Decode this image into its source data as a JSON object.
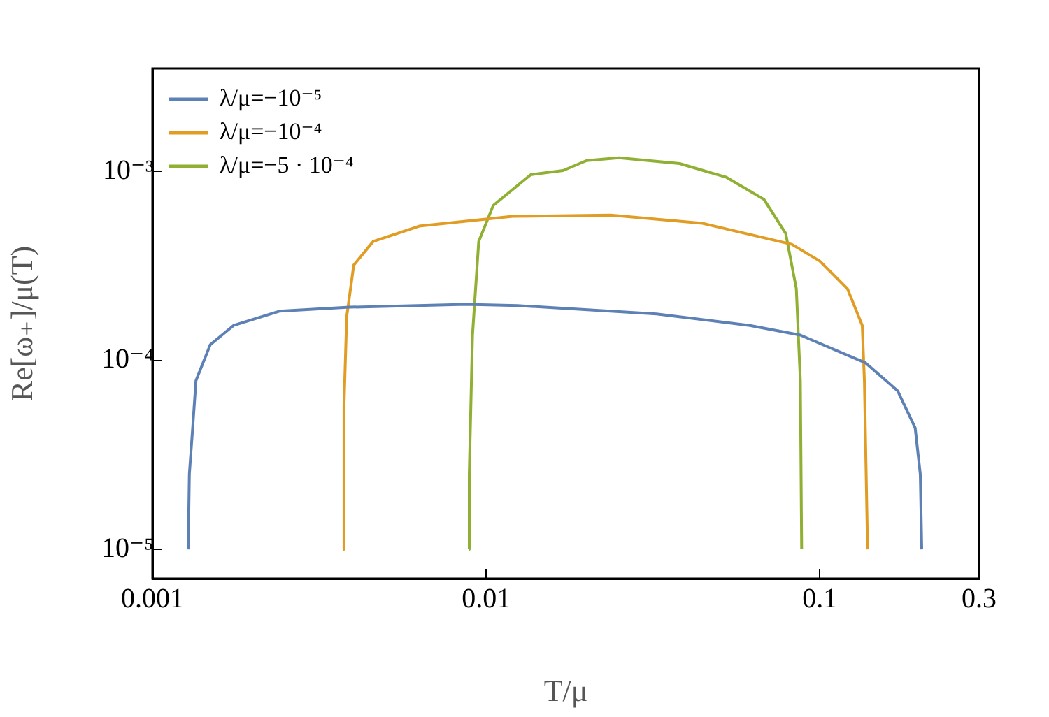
{
  "chart_data": {
    "type": "line",
    "xlabel": "T/μ",
    "ylabel": "Re[ω₊]/μ(T)",
    "log": "xy",
    "grid": false,
    "legend": "top left",
    "marker": "none",
    "line_style": "solid",
    "xlim": [
      0.001,
      0.3
    ],
    "xticks": [
      0.001,
      0.01,
      0.1,
      0.3
    ],
    "ylim": [
      7e-06,
      0.0035
    ],
    "yticks": [
      {
        "value": 1e-05,
        "label": "10⁻⁵"
      },
      {
        "value": 0.0001,
        "label": "10⁻⁴"
      },
      {
        "value": 0.001,
        "label": "10⁻³"
      }
    ],
    "series": [
      {
        "name": "λ/μ=−10⁻⁵",
        "color": "#5e81b5",
        "x": [
          0.00128,
          0.00129,
          0.00132,
          0.00135,
          0.00149,
          0.00175,
          0.0024,
          0.0039,
          0.0087,
          0.0124,
          0.0324,
          0.0617,
          0.0874,
          0.137,
          0.171,
          0.193,
          0.2,
          0.202
        ],
        "values": [
          1e-05,
          2.5e-05,
          4.4e-05,
          7.8e-05,
          0.000121,
          0.000153,
          0.000182,
          0.000191,
          0.000198,
          0.000195,
          0.000176,
          0.000153,
          0.000136,
          9.7e-05,
          6.9e-05,
          4.4e-05,
          2.5e-05,
          1e-05
        ]
      },
      {
        "name": "λ/μ=−10⁻⁴",
        "color": "#e19c24",
        "x": [
          0.00373,
          0.00375,
          0.00382,
          0.00401,
          0.00459,
          0.0063,
          0.012,
          0.0236,
          0.0445,
          0.0824,
          0.1,
          0.121,
          0.134,
          0.136,
          0.139
        ],
        "values": [
          1e-05,
          5.8e-05,
          0.00017,
          0.000319,
          0.000426,
          0.000513,
          0.000578,
          0.000587,
          0.000531,
          0.000411,
          0.000335,
          0.000239,
          0.000153,
          7.8e-05,
          1e-05
        ]
      },
      {
        "name": "λ/μ=−5 · 10⁻⁴",
        "color": "#8fb032",
        "x": [
          0.00889,
          0.0089,
          0.0091,
          0.0095,
          0.0105,
          0.0136,
          0.017,
          0.02,
          0.025,
          0.038,
          0.0525,
          0.068,
          0.079,
          0.085,
          0.0874,
          0.0882
        ],
        "values": [
          1e-05,
          2.5e-05,
          0.000136,
          0.000426,
          0.00066,
          0.00096,
          0.00101,
          0.00114,
          0.00118,
          0.0011,
          0.00093,
          0.00071,
          0.00047,
          0.00024,
          7.8e-05,
          1e-05
        ]
      }
    ]
  }
}
